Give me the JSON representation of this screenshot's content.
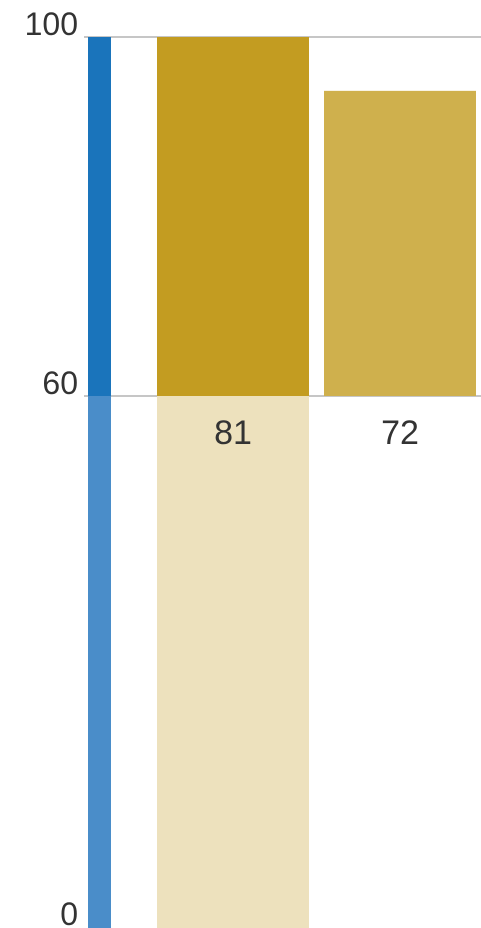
{
  "chart_data": {
    "type": "bar",
    "title": "",
    "xlabel": "",
    "ylabel": "",
    "y_ticks": [
      {
        "value": 0,
        "label": "0"
      },
      {
        "value": 60,
        "label": "60"
      },
      {
        "value": 100,
        "label": "100"
      }
    ],
    "axis_segments": [
      {
        "from": 0,
        "to": 60,
        "color": "#4a8dc9"
      },
      {
        "from": 60,
        "to": 100,
        "color": "#1a74bb"
      }
    ],
    "bars": [
      {
        "label": "81",
        "value": 100,
        "base_value": 0,
        "color": "#c39c21",
        "below_color": "#ede1bd"
      },
      {
        "label": "72",
        "value": 94,
        "base_value": 60,
        "color": "#cfb04d",
        "below_color": null
      }
    ],
    "grid": {
      "lines_at": [
        60,
        100
      ],
      "color": "#b3b3b3"
    },
    "legend": "none"
  }
}
